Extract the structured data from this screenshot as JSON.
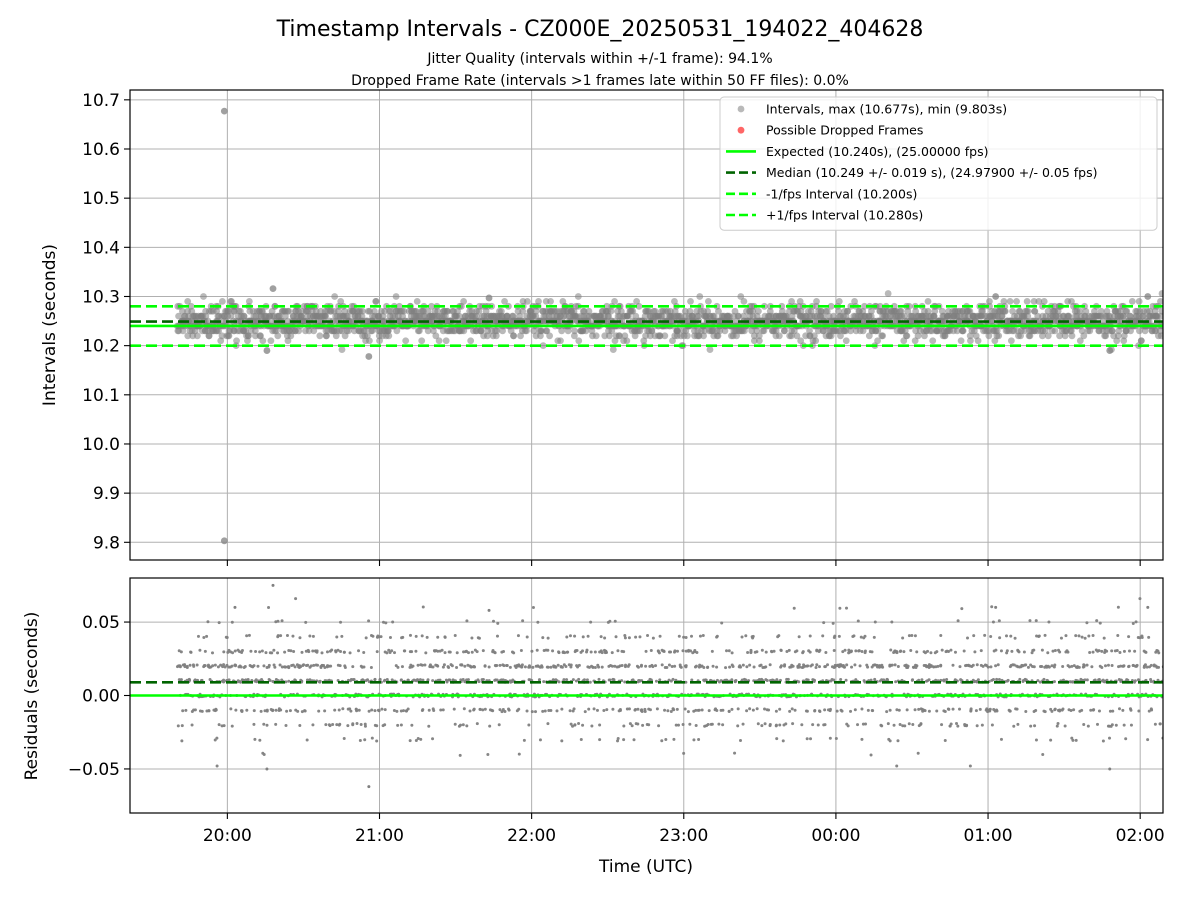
{
  "chart_data": {
    "title": "Timestamp Intervals - CZ000E_20250531_194022_404628",
    "subtitle_lines": [
      "Jitter Quality (intervals within +/-1 frame): 94.1%",
      "Dropped Frame Rate (intervals >1 frames late within 50 FF files): 0.0%"
    ],
    "xlabel": "Time (UTC)",
    "x_tick_labels": [
      "20:00",
      "21:00",
      "22:00",
      "23:00",
      "00:00",
      "01:00",
      "02:00"
    ],
    "x_tick_hours": [
      0,
      1,
      2,
      3,
      4,
      5,
      6
    ],
    "x_range_hours": [
      -0.64,
      6.15
    ],
    "data_start_hours": -0.33,
    "data_end_hours": 6.15,
    "grid": true,
    "legend_placement": "top-right",
    "panels": [
      {
        "type": "scatter",
        "ylabel": "Intervals (seconds)",
        "ylim": [
          9.764,
          10.72
        ],
        "y_ticks": [
          9.8,
          9.9,
          10.0,
          10.1,
          10.2,
          10.3,
          10.4,
          10.5,
          10.6,
          10.7
        ],
        "y_tick_labels": [
          "9.8",
          "9.9",
          "10.0",
          "10.1",
          "10.2",
          "10.3",
          "10.4",
          "10.5",
          "10.6",
          "10.7"
        ],
        "reference_lines": [
          {
            "name": "Expected (10.240s), (25.00000 fps)",
            "y": 10.24,
            "color": "#00ff00",
            "style": "solid"
          },
          {
            "name": "Median (10.249 +/- 0.019 s), (24.97900 +/- 0.05 fps)",
            "y": 10.249,
            "color": "#006400",
            "style": "dashed"
          },
          {
            "name": "-1/fps Interval (10.200s)",
            "y": 10.2,
            "color": "#00ff00",
            "style": "dashed"
          },
          {
            "name": "+1/fps Interval (10.280s)",
            "y": 10.28,
            "color": "#00ff00",
            "style": "dashed"
          }
        ],
        "series": [
          {
            "name": "Intervals, max (10.677s), min (9.803s)",
            "color": "#808080",
            "center": 10.249,
            "spread": 0.019,
            "count": 2280
          },
          {
            "name": "Possible Dropped Frames",
            "color": "#ff0000",
            "count": 0
          }
        ],
        "notable_points": [
          {
            "x_hours": -0.02,
            "y": 10.677
          },
          {
            "x_hours": -0.02,
            "y": 9.803
          },
          {
            "x_hours": 0.3,
            "y": 10.316
          },
          {
            "x_hours": 0.93,
            "y": 10.178
          },
          {
            "x_hours": 0.26,
            "y": 10.19
          },
          {
            "x_hours": 1.72,
            "y": 10.297
          },
          {
            "x_hours": 5.05,
            "y": 10.3
          },
          {
            "x_hours": 6.05,
            "y": 10.3
          },
          {
            "x_hours": 5.8,
            "y": 10.19
          }
        ]
      },
      {
        "type": "scatter",
        "ylabel": "Residuals (seconds)",
        "ylim": [
          -0.08,
          0.08
        ],
        "y_ticks": [
          -0.05,
          0.0,
          0.05
        ],
        "y_tick_labels": [
          "−0.05",
          "0.00",
          "0.05"
        ],
        "reference_lines": [
          {
            "y": 0.0,
            "color": "#00ff00",
            "style": "solid"
          },
          {
            "y": 0.009,
            "color": "#006400",
            "style": "dashed"
          }
        ],
        "series": [
          {
            "color": "#808080",
            "center": 0.009,
            "spread": 0.019,
            "count": 2280
          }
        ],
        "notable_points": [
          {
            "x_hours": 0.3,
            "y": 0.075
          },
          {
            "x_hours": 0.93,
            "y": -0.062
          },
          {
            "x_hours": 0.05,
            "y": 0.06
          },
          {
            "x_hours": 1.72,
            "y": 0.058
          },
          {
            "x_hours": 5.05,
            "y": 0.06
          },
          {
            "x_hours": 6.05,
            "y": 0.06
          },
          {
            "x_hours": 5.8,
            "y": -0.05
          },
          {
            "x_hours": 0.26,
            "y": -0.05
          }
        ]
      }
    ]
  }
}
